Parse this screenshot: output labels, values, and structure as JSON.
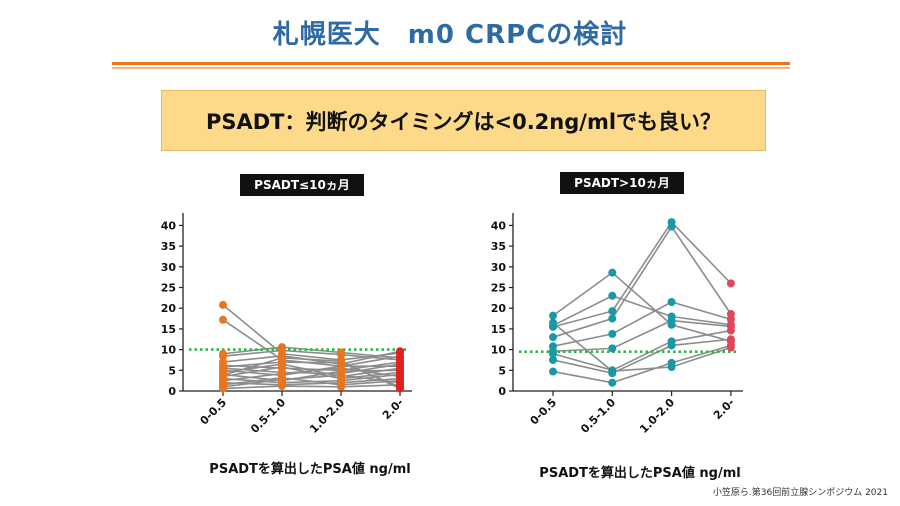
{
  "title": "札幌医大　m0 CRPCの検討",
  "banner": "PSADT：判断のタイミングは<0.2ng/mlでも良い？",
  "citation": "小笠原ら.第36回前立腺シンポジウム 2021",
  "colors": {
    "title": "#2f6aa3",
    "rule": "#e8761e",
    "banner": "#fdd98a",
    "line": "#8c8c8c",
    "threshold": "#2fb34a"
  },
  "chart_data": [
    {
      "type": "line",
      "label": "PSADT≤10ヵ月",
      "xlabel": "PSADTを算出したPSA値 ng/ml",
      "ylabel": "",
      "categories": [
        "0-0.5",
        "0.5-1.0",
        "1.0-2.0",
        "2.0-"
      ],
      "yticks": [
        0,
        5,
        10,
        15,
        20,
        25,
        30,
        35,
        40
      ],
      "ylim": [
        0,
        43
      ],
      "threshold": 10,
      "point_colors": [
        "#e8761e",
        "#e8761e",
        "#e8761e",
        "#e02020"
      ],
      "series": [
        {
          "values": [
            20.8,
            9.0,
            7.5,
            9.2
          ]
        },
        {
          "values": [
            17.2,
            7.5,
            6.0,
            8.4
          ]
        },
        {
          "values": [
            9.0,
            10.6,
            9.3,
            8.0
          ]
        },
        {
          "values": [
            8.4,
            9.8,
            8.8,
            7.5
          ]
        },
        {
          "values": [
            7.0,
            8.5,
            6.5,
            9.6
          ]
        },
        {
          "values": [
            6.2,
            5.5,
            5.0,
            7.0
          ]
        },
        {
          "values": [
            5.5,
            4.5,
            4.2,
            6.5
          ]
        },
        {
          "values": [
            5.0,
            3.8,
            6.0,
            6.0
          ]
        },
        {
          "values": [
            4.5,
            6.5,
            3.5,
            5.5
          ]
        },
        {
          "values": [
            4.0,
            2.5,
            4.8,
            5.0
          ]
        },
        {
          "values": [
            3.5,
            5.8,
            3.0,
            4.5
          ]
        },
        {
          "values": [
            3.0,
            2.0,
            2.5,
            4.0
          ]
        },
        {
          "values": [
            2.5,
            4.2,
            5.5,
            3.5
          ]
        },
        {
          "values": [
            2.0,
            1.5,
            2.0,
            3.0
          ]
        },
        {
          "values": [
            1.5,
            3.2,
            1.5,
            2.5
          ]
        },
        {
          "values": [
            1.0,
            2.8,
            3.8,
            2.0
          ]
        },
        {
          "values": [
            0.6,
            1.2,
            1.0,
            1.5
          ]
        },
        {
          "values": [
            5.8,
            7.0,
            6.8,
            1.0
          ]
        },
        {
          "values": [
            3.8,
            8.0,
            7.2,
            0.6
          ]
        }
      ]
    },
    {
      "type": "line",
      "label": "PSADT>10ヵ月",
      "xlabel": "PSADTを算出したPSA値 ng/ml",
      "ylabel": "",
      "categories": [
        "0-0.5",
        "0.5-1.0",
        "1.0-2.0",
        "2.0-"
      ],
      "yticks": [
        0,
        5,
        10,
        15,
        20,
        25,
        30,
        35,
        40
      ],
      "ylim": [
        0,
        43
      ],
      "threshold": 9.5,
      "point_colors": [
        "#1a98a6",
        "#1a98a6",
        "#1a98a6",
        "#e0485a"
      ],
      "series": [
        {
          "values": [
            18.2,
            28.6,
            16.0,
            12.0
          ]
        },
        {
          "values": [
            15.8,
            23.0,
            18.0,
            16.0
          ]
        },
        {
          "values": [
            15.5,
            19.3,
            40.8,
            26.0
          ]
        },
        {
          "values": [
            13.0,
            17.5,
            39.7,
            18.6
          ]
        },
        {
          "values": [
            10.8,
            13.8,
            21.5,
            17.3
          ]
        },
        {
          "values": [
            9.6,
            10.3,
            17.0,
            15.6
          ]
        },
        {
          "values": [
            9.0,
            5.0,
            12.0,
            14.6
          ]
        },
        {
          "values": [
            7.5,
            4.3,
            11.0,
            12.5
          ]
        },
        {
          "values": [
            4.7,
            2.0,
            6.8,
            11.0
          ]
        },
        {
          "values": [
            16.5,
            4.8,
            5.8,
            10.5
          ]
        }
      ]
    }
  ]
}
